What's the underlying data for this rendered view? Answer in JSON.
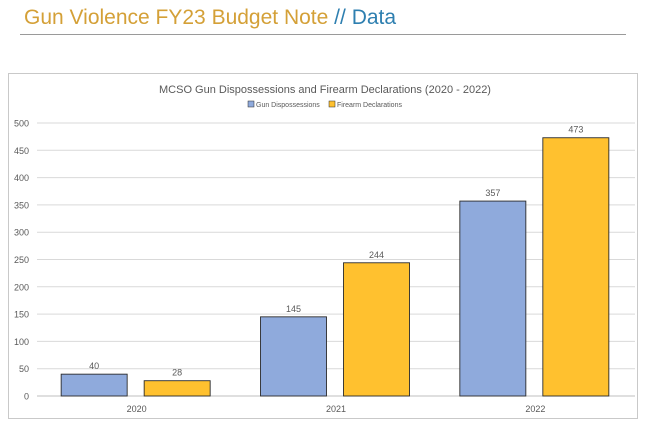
{
  "slide": {
    "title_main": "Gun Violence FY23 Budget Note",
    "title_sep": "//",
    "title_sub": "Data"
  },
  "colors": {
    "series_1": "#8faadc",
    "series_2": "#ffc12f",
    "bar_stroke": "#2b2b2b",
    "grid": "#d9d9d9",
    "text": "#595959"
  },
  "chart_data": {
    "type": "bar",
    "title": "MCSO Gun Dispossessions and Firearm Declarations (2020 - 2022)",
    "categories": [
      "2020",
      "2021",
      "2022"
    ],
    "series": [
      {
        "name": "Gun Dispossessions",
        "values": [
          40,
          145,
          357
        ]
      },
      {
        "name": "Firearm Declarations",
        "values": [
          28,
          244,
          473
        ]
      }
    ],
    "xlabel": "",
    "ylabel": "",
    "ylim": [
      0,
      500
    ],
    "yticks": [
      0,
      50,
      100,
      150,
      200,
      250,
      300,
      350,
      400,
      450,
      500
    ],
    "grid": true,
    "legend": "top-center",
    "data_labels": true
  }
}
